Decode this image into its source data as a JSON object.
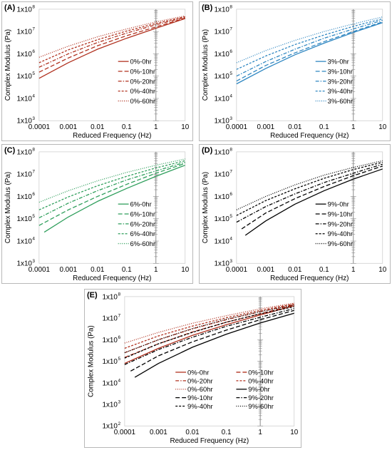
{
  "chart_data": [
    {
      "panel": "(A)",
      "type": "line",
      "xlabel": "Reduced Frequency (Hz)",
      "ylabel": "Complex Modulus (Pa)",
      "xscale": "log",
      "yscale": "log",
      "xlim": [
        0.0001,
        10
      ],
      "ylim": [
        1000,
        100000000
      ],
      "x_ticks": [
        "0.0001",
        "0.001",
        "0.01",
        "0.1",
        "1",
        "10"
      ],
      "y_ticks": [
        "1x10",
        "1x10",
        "1x10",
        "1x10",
        "1x10",
        "1x10"
      ],
      "y_tick_exponents": [
        "3",
        "4",
        "5",
        "6",
        "7",
        "8"
      ],
      "reference_line_x": 1,
      "legend_position": "center-right",
      "color": "#b0301e",
      "series": [
        {
          "name": "0%-0hr",
          "style": "solid",
          "x": [
            0.0001,
            0.001,
            0.01,
            0.1,
            1,
            10
          ],
          "y": [
            80000,
            400000,
            1600000,
            5000000,
            14000000,
            38000000
          ]
        },
        {
          "name": "0%-10hr",
          "style": "longdash",
          "x": [
            0.0001,
            0.001,
            0.01,
            0.1,
            1,
            10
          ],
          "y": [
            150000,
            650000,
            2300000,
            6500000,
            16000000,
            40000000
          ]
        },
        {
          "name": "0%-20hr",
          "style": "dashdot",
          "x": [
            0.0001,
            0.001,
            0.01,
            0.1,
            1,
            10
          ],
          "y": [
            250000,
            1000000,
            3200000,
            8500000,
            20000000,
            43000000
          ]
        },
        {
          "name": "0%-40hr",
          "style": "dash",
          "x": [
            0.0001,
            0.001,
            0.01,
            0.1,
            1,
            10
          ],
          "y": [
            400000,
            1500000,
            4300000,
            10500000,
            23000000,
            46000000
          ]
        },
        {
          "name": "0%-60hr",
          "style": "dot",
          "x": [
            0.0001,
            0.001,
            0.01,
            0.1,
            1,
            10
          ],
          "y": [
            700000,
            2200000,
            5800000,
            13000000,
            27000000,
            50000000
          ]
        }
      ]
    },
    {
      "panel": "(B)",
      "type": "line",
      "xlabel": "Reduced Frequency (Hz)",
      "ylabel": "Complex Modulus (Pa)",
      "xscale": "log",
      "yscale": "log",
      "xlim": [
        0.0001,
        10
      ],
      "ylim": [
        1000,
        100000000
      ],
      "x_ticks": [
        "0.0001",
        "0.001",
        "0.01",
        "0.1",
        "1",
        "10"
      ],
      "y_ticks": [
        "1x10",
        "1x10",
        "1x10",
        "1x10",
        "1x10",
        "1x10"
      ],
      "y_tick_exponents": [
        "3",
        "4",
        "5",
        "6",
        "7",
        "8"
      ],
      "reference_line_x": 1,
      "legend_position": "center-right",
      "color": "#2e86c1",
      "series": [
        {
          "name": "3%-0hr",
          "style": "solid",
          "x": [
            0.0001,
            0.001,
            0.01,
            0.1,
            1,
            10
          ],
          "y": [
            45000,
            220000,
            900000,
            3000000,
            9000000,
            25000000
          ]
        },
        {
          "name": "3%-10hr",
          "style": "longdash",
          "x": [
            0.0001,
            0.001,
            0.01,
            0.1,
            1,
            10
          ],
          "y": [
            60000,
            300000,
            1100000,
            3500000,
            10000000,
            27000000
          ]
        },
        {
          "name": "3%-20hr",
          "style": "dashdot",
          "x": [
            0.0001,
            0.001,
            0.01,
            0.1,
            1,
            10
          ],
          "y": [
            100000,
            450000,
            1600000,
            5000000,
            13000000,
            32000000
          ]
        },
        {
          "name": "3%-40hr",
          "style": "dash",
          "x": [
            0.0001,
            0.001,
            0.01,
            0.1,
            1,
            10
          ],
          "y": [
            200000,
            800000,
            2600000,
            7000000,
            17000000,
            37000000
          ]
        },
        {
          "name": "3%-60hr",
          "style": "dot",
          "x": [
            0.0001,
            0.001,
            0.01,
            0.1,
            1,
            10
          ],
          "y": [
            400000,
            1400000,
            4000000,
            10000000,
            22000000,
            45000000
          ]
        }
      ]
    },
    {
      "panel": "(C)",
      "type": "line",
      "xlabel": "Reduced Frequency (Hz)",
      "ylabel": "Complex Modulus (Pa)",
      "xscale": "log",
      "yscale": "log",
      "xlim": [
        0.0001,
        10
      ],
      "ylim": [
        1000,
        100000000
      ],
      "x_ticks": [
        "0.0001",
        "0.001",
        "0.01",
        "0.1",
        "1",
        "10"
      ],
      "y_ticks": [
        "1x10",
        "1x10",
        "1x10",
        "1x10",
        "1x10",
        "1x10"
      ],
      "y_tick_exponents": [
        "3",
        "4",
        "5",
        "6",
        "7",
        "8"
      ],
      "reference_line_x": 1,
      "legend_position": "center-right",
      "color": "#2e9e5b",
      "series": [
        {
          "name": "6%-0hr",
          "style": "solid",
          "x": [
            0.00015,
            0.001,
            0.01,
            0.1,
            1,
            10
          ],
          "y": [
            25000,
            120000,
            600000,
            2300000,
            8000000,
            25000000
          ]
        },
        {
          "name": "6%-10hr",
          "style": "longdash",
          "x": [
            0.0001,
            0.001,
            0.01,
            0.1,
            1,
            10
          ],
          "y": [
            50000,
            250000,
            1000000,
            3500000,
            11000000,
            30000000
          ]
        },
        {
          "name": "6%-20hr",
          "style": "dashdot",
          "x": [
            0.0001,
            0.001,
            0.01,
            0.1,
            1,
            10
          ],
          "y": [
            110000,
            500000,
            1800000,
            5500000,
            14000000,
            34000000
          ]
        },
        {
          "name": "6%-40hr",
          "style": "dash",
          "x": [
            0.0001,
            0.001,
            0.01,
            0.1,
            1,
            10
          ],
          "y": [
            250000,
            950000,
            3000000,
            8000000,
            19000000,
            40000000
          ]
        },
        {
          "name": "6%-60hr",
          "style": "dot",
          "x": [
            0.0001,
            0.001,
            0.01,
            0.1,
            1,
            10
          ],
          "y": [
            550000,
            1800000,
            5000000,
            12000000,
            25000000,
            48000000
          ]
        }
      ]
    },
    {
      "panel": "(D)",
      "type": "line",
      "xlabel": "Reduced Frequency (Hz)",
      "ylabel": "Complex Modulus (Pa)",
      "xscale": "log",
      "yscale": "log",
      "xlim": [
        0.0001,
        10
      ],
      "ylim": [
        1000,
        100000000
      ],
      "x_ticks": [
        "0.0001",
        "0.001",
        "0.01",
        "0.1",
        "1",
        "10"
      ],
      "y_ticks": [
        "1x10",
        "1x10",
        "1x10",
        "1x10",
        "1x10",
        "1x10"
      ],
      "y_tick_exponents": [
        "3",
        "4",
        "5",
        "6",
        "7",
        "8"
      ],
      "reference_line_x": 1,
      "legend_position": "center-right",
      "color": "#000000",
      "series": [
        {
          "name": "9%-0hr",
          "style": "solid",
          "x": [
            0.0002,
            0.001,
            0.01,
            0.1,
            1,
            10
          ],
          "y": [
            18000,
            80000,
            450000,
            1800000,
            6000000,
            17000000
          ]
        },
        {
          "name": "9%-10hr",
          "style": "longdash",
          "x": [
            0.00015,
            0.001,
            0.01,
            0.1,
            1,
            10
          ],
          "y": [
            35000,
            180000,
            800000,
            2800000,
            8500000,
            23000000
          ]
        },
        {
          "name": "9%-20hr",
          "style": "dashdot",
          "x": [
            0.0001,
            0.001,
            0.01,
            0.1,
            1,
            10
          ],
          "y": [
            70000,
            350000,
            1300000,
            4200000,
            11000000,
            28000000
          ]
        },
        {
          "name": "9%-40hr",
          "style": "dash",
          "x": [
            0.0001,
            0.001,
            0.01,
            0.1,
            1,
            10
          ],
          "y": [
            140000,
            650000,
            2200000,
            6500000,
            16000000,
            34000000
          ]
        },
        {
          "name": "9%-60hr",
          "style": "dot",
          "x": [
            0.0001,
            0.001,
            0.01,
            0.1,
            1,
            10
          ],
          "y": [
            250000,
            1000000,
            3300000,
            9000000,
            20000000,
            40000000
          ]
        }
      ]
    },
    {
      "panel": "(E)",
      "type": "line",
      "xlabel": "Reduced Frequency (Hz)",
      "ylabel": "Complex Modulus (Pa)",
      "xscale": "log",
      "yscale": "log",
      "xlim": [
        0.0001,
        10
      ],
      "ylim": [
        100,
        100000000
      ],
      "x_ticks": [
        "0.0001",
        "0.001",
        "0.01",
        "0.1",
        "1",
        "10"
      ],
      "y_ticks": [
        "1x10",
        "1x10",
        "1x10",
        "1x10",
        "1x10",
        "1x10",
        "1x10"
      ],
      "y_tick_exponents": [
        "2",
        "3",
        "4",
        "5",
        "6",
        "7",
        "8"
      ],
      "reference_line_x": 1,
      "legend_position": "lower-center",
      "series": [
        {
          "name": "0%-0hr",
          "style": "solid",
          "color": "#b0301e",
          "x": [
            0.0001,
            0.001,
            0.01,
            0.1,
            1,
            10
          ],
          "y": [
            80000,
            400000,
            1600000,
            5000000,
            14000000,
            38000000
          ]
        },
        {
          "name": "0%-10hr",
          "style": "longdash",
          "color": "#b0301e",
          "x": [
            0.0001,
            0.001,
            0.01,
            0.1,
            1,
            10
          ],
          "y": [
            150000,
            650000,
            2300000,
            6500000,
            16000000,
            40000000
          ]
        },
        {
          "name": "0%-20hr",
          "style": "dashdot",
          "color": "#b0301e",
          "x": [
            0.0001,
            0.001,
            0.01,
            0.1,
            1,
            10
          ],
          "y": [
            250000,
            1000000,
            3200000,
            8500000,
            20000000,
            43000000
          ]
        },
        {
          "name": "0%-40hr",
          "style": "dash",
          "color": "#b0301e",
          "x": [
            0.0001,
            0.001,
            0.01,
            0.1,
            1,
            10
          ],
          "y": [
            400000,
            1500000,
            4300000,
            10500000,
            23000000,
            46000000
          ]
        },
        {
          "name": "0%-60hr",
          "style": "dot",
          "color": "#b0301e",
          "x": [
            0.0001,
            0.001,
            0.01,
            0.1,
            1,
            10
          ],
          "y": [
            700000,
            2200000,
            5800000,
            13000000,
            27000000,
            50000000
          ]
        },
        {
          "name": "9%-0hr",
          "style": "solid",
          "color": "#000000",
          "x": [
            0.0002,
            0.001,
            0.01,
            0.1,
            1,
            10
          ],
          "y": [
            18000,
            80000,
            450000,
            1800000,
            6000000,
            17000000
          ]
        },
        {
          "name": "9%-10hr",
          "style": "longdash",
          "color": "#000000",
          "x": [
            0.00015,
            0.001,
            0.01,
            0.1,
            1,
            10
          ],
          "y": [
            35000,
            180000,
            800000,
            2800000,
            8500000,
            23000000
          ]
        },
        {
          "name": "9%-20hr",
          "style": "dashdot",
          "color": "#000000",
          "x": [
            0.0001,
            0.001,
            0.01,
            0.1,
            1,
            10
          ],
          "y": [
            70000,
            350000,
            1300000,
            4200000,
            11000000,
            28000000
          ]
        },
        {
          "name": "9%-40hr",
          "style": "dash",
          "color": "#000000",
          "x": [
            0.0001,
            0.001,
            0.01,
            0.1,
            1,
            10
          ],
          "y": [
            140000,
            650000,
            2200000,
            6500000,
            16000000,
            34000000
          ]
        },
        {
          "name": "9%-60hr",
          "style": "dot",
          "color": "#000000",
          "x": [
            0.0001,
            0.001,
            0.01,
            0.1,
            1,
            10
          ],
          "y": [
            250000,
            1000000,
            3300000,
            9000000,
            20000000,
            40000000
          ]
        }
      ]
    }
  ]
}
